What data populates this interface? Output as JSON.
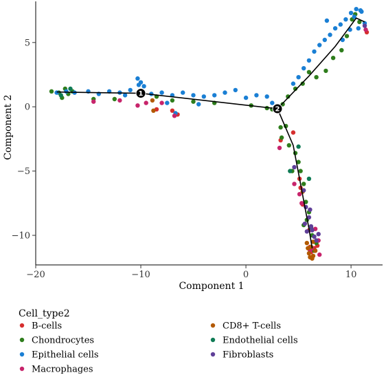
{
  "chart_data": {
    "type": "scatter",
    "title": "",
    "xlabel": "Component 1",
    "ylabel": "Component 2",
    "xlim": [
      -20,
      13
    ],
    "ylim": [
      -12.3,
      8.2
    ],
    "xticks": [
      -20,
      -10,
      0,
      10
    ],
    "xtick_labels": [
      "−20",
      "−10",
      "0",
      "10"
    ],
    "yticks": [
      5,
      0,
      -5,
      -10
    ],
    "ytick_labels": [
      "5",
      "0",
      "−5",
      "−10"
    ],
    "grid": false,
    "legend_position": "bottom",
    "legend_title": "Cell_type2",
    "series": [
      {
        "name": "B-cells",
        "color": "#d62f2f",
        "points": [
          [
            -7,
            -0.3
          ],
          [
            -8.5,
            -0.2
          ],
          [
            -6.5,
            -0.6
          ],
          [
            3.3,
            -2.6
          ],
          [
            4.5,
            -2
          ],
          [
            5.1,
            -5.6
          ],
          [
            5.2,
            -6.3
          ],
          [
            5.4,
            -7.6
          ],
          [
            6,
            -9.6
          ],
          [
            6.5,
            -11
          ],
          [
            6.2,
            -11.3
          ],
          [
            6.8,
            -10.8
          ],
          [
            11.5,
            5.8
          ],
          [
            6.1,
            -10.9
          ]
        ]
      },
      {
        "name": "Chondrocytes",
        "color": "#2e7d1c",
        "points": [
          [
            -18.5,
            1.2
          ],
          [
            -17.8,
            1.1
          ],
          [
            -17.2,
            1.4
          ],
          [
            -16.9,
            1
          ],
          [
            -17.5,
            0.7
          ],
          [
            -16.5,
            1.2
          ],
          [
            -14.5,
            0.6
          ],
          [
            -12.5,
            0.6
          ],
          [
            -8.5,
            0.8
          ],
          [
            -7,
            0.5
          ],
          [
            -5,
            0.4
          ],
          [
            -3,
            0.3
          ],
          [
            0.5,
            0.1
          ],
          [
            2,
            -0.1
          ],
          [
            2.5,
            -0.2
          ],
          [
            3.5,
            0.2
          ],
          [
            3.3,
            -1.6
          ],
          [
            3.8,
            -1.5
          ],
          [
            3.4,
            -2.4
          ],
          [
            4.1,
            -3
          ],
          [
            4.7,
            -3.6
          ],
          [
            5,
            -4.3
          ],
          [
            5.2,
            -5
          ],
          [
            5.5,
            -6
          ],
          [
            4.4,
            -5
          ],
          [
            5.7,
            -7.4
          ],
          [
            6,
            -8.2
          ],
          [
            5.5,
            -9.2
          ],
          [
            5.8,
            -8.8
          ],
          [
            6.3,
            -10
          ],
          [
            6.7,
            -10.6
          ],
          [
            6.5,
            -11.2
          ],
          [
            4,
            0.8
          ],
          [
            4.7,
            1.4
          ],
          [
            5.4,
            1.8
          ],
          [
            6,
            2.7
          ],
          [
            6.7,
            2.3
          ],
          [
            7.6,
            2.8
          ],
          [
            8.3,
            3.8
          ],
          [
            9.1,
            4.4
          ],
          [
            9.6,
            5.5
          ],
          [
            10.4,
            7.2
          ],
          [
            10.8,
            6.6
          ],
          [
            10.1,
            6.8
          ]
        ]
      },
      {
        "name": "Epithelial cells",
        "color": "#1a7fd4",
        "points": [
          [
            -18,
            1.1
          ],
          [
            -17.1,
            1.2
          ],
          [
            -16.3,
            1.1
          ],
          [
            -15,
            1.2
          ],
          [
            -14,
            1
          ],
          [
            -13,
            1.2
          ],
          [
            -12,
            1.1
          ],
          [
            -11.5,
            0.9
          ],
          [
            -11,
            1.3
          ],
          [
            -10.2,
            1.7
          ],
          [
            -10,
            1.9
          ],
          [
            -10.3,
            2.2
          ],
          [
            -9.7,
            1.6
          ],
          [
            -9,
            1
          ],
          [
            -8,
            1.1
          ],
          [
            -7,
            0.9
          ],
          [
            -6,
            1.1
          ],
          [
            -5,
            0.9
          ],
          [
            -4,
            0.8
          ],
          [
            -3,
            0.9
          ],
          [
            -2,
            1.1
          ],
          [
            -1,
            1.3
          ],
          [
            0,
            0.7
          ],
          [
            1,
            0.9
          ],
          [
            2,
            0.8
          ],
          [
            2.5,
            0.3
          ],
          [
            -6.7,
            -0.5
          ],
          [
            -4.5,
            0.2
          ],
          [
            -7.5,
            0.3
          ],
          [
            4.5,
            1.8
          ],
          [
            5,
            2.3
          ],
          [
            5.5,
            3
          ],
          [
            6,
            3.6
          ],
          [
            6.5,
            4.3
          ],
          [
            7,
            4.8
          ],
          [
            7.5,
            5.2
          ],
          [
            7.7,
            6.7
          ],
          [
            8,
            5.6
          ],
          [
            8.5,
            6.1
          ],
          [
            9,
            6.4
          ],
          [
            9.5,
            6.8
          ],
          [
            10,
            7.3
          ],
          [
            10.5,
            7.6
          ],
          [
            11,
            7.4
          ],
          [
            10.3,
            7
          ],
          [
            11.3,
            6.5
          ],
          [
            10.7,
            6.1
          ],
          [
            9.9,
            6
          ],
          [
            10.9,
            7.5
          ],
          [
            9.2,
            5.2
          ]
        ]
      },
      {
        "name": "Macrophages",
        "color": "#c7246b",
        "points": [
          [
            -14.5,
            0.4
          ],
          [
            -12,
            0.5
          ],
          [
            -9.5,
            0.3
          ],
          [
            -6.8,
            -0.7
          ],
          [
            -10.3,
            0.1
          ],
          [
            -8,
            0.3
          ],
          [
            3.2,
            -3.2
          ],
          [
            4.6,
            -6
          ],
          [
            5.1,
            -6.8
          ],
          [
            5.3,
            -7.5
          ],
          [
            6.6,
            -9.5
          ],
          [
            6.1,
            -11.2
          ],
          [
            7,
            -11.5
          ],
          [
            11.4,
            6
          ],
          [
            6.3,
            -11
          ],
          [
            6.9,
            -10.4
          ]
        ]
      },
      {
        "name": "CD8+ T-cells",
        "color": "#b35900",
        "points": [
          [
            -8.9,
            0.5
          ],
          [
            -8.8,
            -0.3
          ],
          [
            5.4,
            -6.6
          ],
          [
            6.2,
            -10.9
          ],
          [
            5.9,
            -11
          ],
          [
            6.1,
            -11.7
          ],
          [
            6.4,
            -11.6
          ],
          [
            6.6,
            -11.2
          ],
          [
            6.3,
            -11.8
          ],
          [
            6,
            -11.4
          ],
          [
            5.8,
            -10.6
          ],
          [
            6.4,
            -10.5
          ]
        ]
      },
      {
        "name": "Endothelial cells",
        "color": "#0f7b55",
        "points": [
          [
            -17.6,
            0.9
          ],
          [
            -16.7,
            1.4
          ],
          [
            4.2,
            -5
          ],
          [
            5,
            -3.1
          ],
          [
            6,
            -5.6
          ],
          [
            6.2,
            -9.4
          ],
          [
            6.5,
            -10.1
          ]
        ]
      },
      {
        "name": "Fibroblasts",
        "color": "#5f3f98",
        "points": [
          [
            4.6,
            -4.7
          ],
          [
            5.5,
            -6.5
          ],
          [
            5.7,
            -7.8
          ],
          [
            6,
            -8.6
          ],
          [
            5.6,
            -9.1
          ],
          [
            6.2,
            -9.3
          ],
          [
            6.3,
            -9.6
          ],
          [
            6.5,
            -10.1
          ],
          [
            6.9,
            -9.9
          ],
          [
            5.8,
            -9.7
          ],
          [
            6.1,
            -8
          ],
          [
            11.3,
            6.3
          ],
          [
            6.7,
            -10.4
          ]
        ]
      }
    ],
    "trajectory": [
      [
        [
          -18,
          1.15
        ],
        [
          -10,
          1.05
        ],
        [
          3,
          -0.15
        ]
      ],
      [
        [
          3,
          -0.15
        ],
        [
          6,
          2.4
        ],
        [
          8.5,
          4.7
        ],
        [
          10.5,
          6.9
        ],
        [
          11.3,
          6.6
        ]
      ],
      [
        [
          3,
          -0.15
        ],
        [
          4.5,
          -3
        ],
        [
          5.2,
          -6
        ],
        [
          6,
          -9.5
        ],
        [
          6.3,
          -11
        ]
      ]
    ],
    "branch_points": [
      {
        "label": "1",
        "x": -10,
        "y": 1.05
      },
      {
        "label": "2",
        "x": 3,
        "y": -0.15
      }
    ]
  }
}
